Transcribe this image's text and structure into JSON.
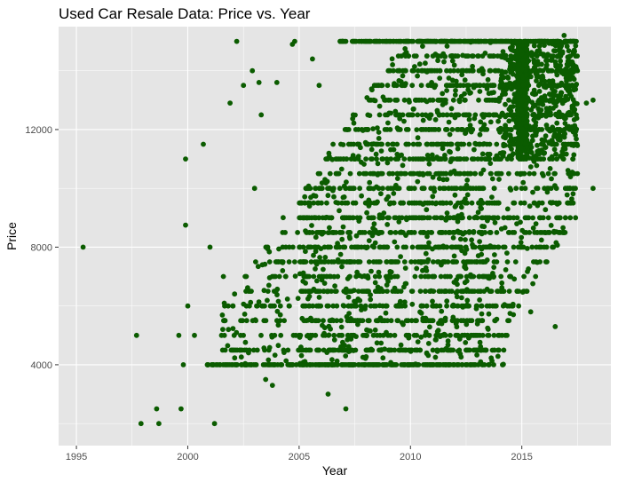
{
  "chart_data": {
    "type": "scatter",
    "title": "Used Car Resale Data: Price vs. Year",
    "xlabel": "Year",
    "ylabel": "Price",
    "xlim": [
      1994.2,
      2019.0
    ],
    "ylim": [
      1250,
      15500
    ],
    "x_ticks": [
      1995,
      2000,
      2005,
      2010,
      2015
    ],
    "y_ticks": [
      4000,
      8000,
      12000
    ],
    "grid": true,
    "legend": "none",
    "point_color": "#0b5c00",
    "panel_background": "#e5e5e5",
    "grid_color": "#ffffff",
    "outliers": [
      [
        1995.3,
        8000
      ],
      [
        1997.7,
        5000
      ],
      [
        1997.9,
        2000
      ],
      [
        1998.6,
        2500
      ],
      [
        1998.7,
        2000
      ],
      [
        1999.6,
        5000
      ],
      [
        1999.7,
        2500
      ],
      [
        1999.8,
        4000
      ],
      [
        1999.9,
        11000
      ],
      [
        1999.9,
        8750
      ],
      [
        2000.0,
        6000
      ],
      [
        2000.3,
        5000
      ],
      [
        2000.7,
        11500
      ],
      [
        2001.0,
        8000
      ],
      [
        2001.2,
        2000
      ],
      [
        2001.6,
        7000
      ],
      [
        2001.9,
        12900
      ],
      [
        2002.2,
        15000
      ],
      [
        2002.5,
        13500
      ],
      [
        2002.9,
        14000
      ],
      [
        2003.2,
        13600
      ],
      [
        2003.5,
        3500
      ],
      [
        2003.8,
        3300
      ],
      [
        2003.0,
        10000
      ],
      [
        2003.3,
        12500
      ],
      [
        2004.0,
        13600
      ],
      [
        2004.7,
        14900
      ],
      [
        2004.8,
        15000
      ],
      [
        2006.3,
        3000
      ],
      [
        2007.1,
        2500
      ],
      [
        2005.6,
        14400
      ],
      [
        2005.9,
        13500
      ],
      [
        2018.2,
        10000
      ],
      [
        2017.9,
        12900
      ],
      [
        2018.2,
        13000
      ],
      [
        2016.9,
        15200
      ],
      [
        2016.5,
        5300
      ],
      [
        2015.4,
        5800
      ]
    ],
    "price_levels": [
      4000,
      4500,
      5000,
      5500,
      6000,
      6500,
      7000,
      7500,
      8000,
      8500,
      9000,
      9500,
      10000,
      10500,
      11000,
      11500,
      12000,
      12500,
      13000,
      13500,
      14000,
      14500,
      15000
    ],
    "cluster_points": 3200,
    "cluster_seed": 7
  }
}
